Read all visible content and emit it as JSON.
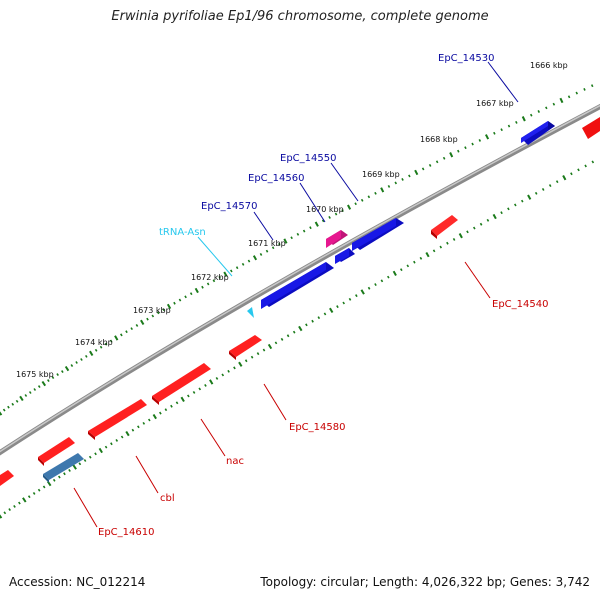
{
  "title": "Erwinia pyrifoliae Ep1/96 chromosome, complete genome",
  "accession": "Accession: NC_012214",
  "stats": "Topology: circular; Length: 4,026,322 bp; Genes: 3,742",
  "scale_labels": [
    "1666 kbp",
    "1667 kbp",
    "1668 kbp",
    "1669 kbp",
    "1670 kbp",
    "1671 kbp",
    "1672 kbp",
    "1673 kbp",
    "1674 kbp",
    "1675 kbp"
  ],
  "colors": {
    "forward_gene": "#1010e6",
    "reverse_gene": "#f00a0a",
    "trna": "#27c8ee",
    "rna_gene": "#e6178f",
    "pseudo_gene": "#4682b4",
    "backbone": "#777777",
    "tick": "#1a7a1a",
    "forward_label": "#0a0aa0",
    "reverse_label": "#c80000"
  },
  "gene_labels": [
    {
      "text": "EpC_14530",
      "strand": "forward"
    },
    {
      "text": "EpC_14550",
      "strand": "forward"
    },
    {
      "text": "EpC_14560",
      "strand": "forward"
    },
    {
      "text": "EpC_14570",
      "strand": "forward"
    },
    {
      "text": "tRNA-Asn",
      "strand": "trna"
    },
    {
      "text": "EpC_14540",
      "strand": "reverse"
    },
    {
      "text": "EpC_14580",
      "strand": "reverse"
    },
    {
      "text": "nac",
      "strand": "reverse"
    },
    {
      "text": "cbl",
      "strand": "reverse"
    },
    {
      "text": "EpC_14610",
      "strand": "reverse"
    }
  ]
}
